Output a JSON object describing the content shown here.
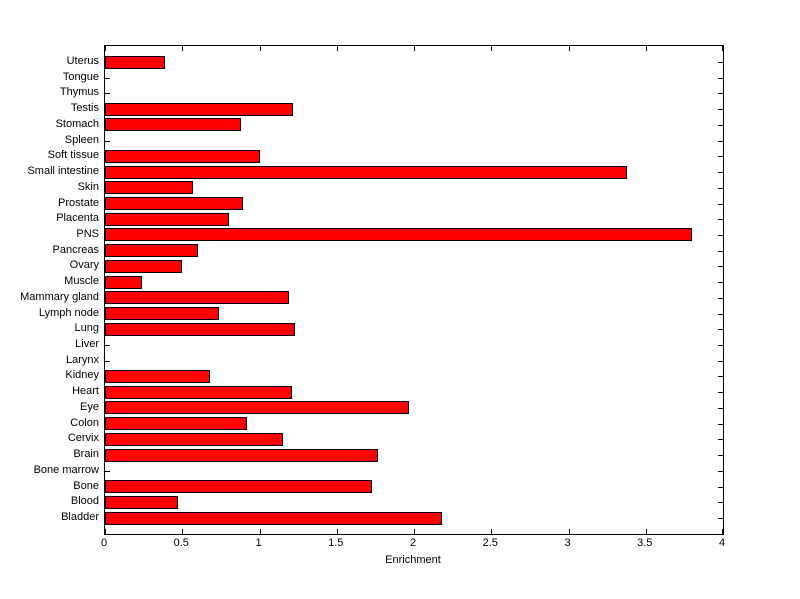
{
  "chart_data": {
    "type": "bar",
    "orientation": "horizontal",
    "title": "",
    "xlabel": "Enrichment",
    "ylabel": "",
    "xlim": [
      0,
      4
    ],
    "grid": false,
    "legend": "none",
    "bar_color": "#ff0000",
    "bar_edge_color": "#000000",
    "axis_color": "#000000",
    "background_color": "#ffffff",
    "xticks": [
      0,
      0.5,
      1,
      1.5,
      2,
      2.5,
      3,
      3.5,
      4
    ],
    "xtick_labels": [
      "0",
      "0.5",
      "1",
      "1.5",
      "2",
      "2.5",
      "3",
      "3.5",
      "4"
    ],
    "categories": [
      "Uterus",
      "Tongue",
      "Thymus",
      "Testis",
      "Stomach",
      "Spleen",
      "Soft tissue",
      "Small intestine",
      "Skin",
      "Prostate",
      "Placenta",
      "PNS",
      "Pancreas",
      "Ovary",
      "Muscle",
      "Mammary gland",
      "Lymph node",
      "Lung",
      "Liver",
      "Larynx",
      "Kidney",
      "Heart",
      "Eye",
      "Colon",
      "Cervix",
      "Brain",
      "Bone marrow",
      "Bone",
      "Blood",
      "Bladder"
    ],
    "values": [
      0.39,
      0,
      0,
      1.22,
      0.88,
      0,
      1.0,
      3.38,
      0.57,
      0.89,
      0.8,
      3.8,
      0.6,
      0.5,
      0.24,
      1.19,
      0.74,
      1.23,
      0,
      0,
      0.68,
      1.21,
      1.97,
      0.92,
      1.15,
      1.77,
      0,
      1.73,
      0.47,
      2.18
    ]
  }
}
